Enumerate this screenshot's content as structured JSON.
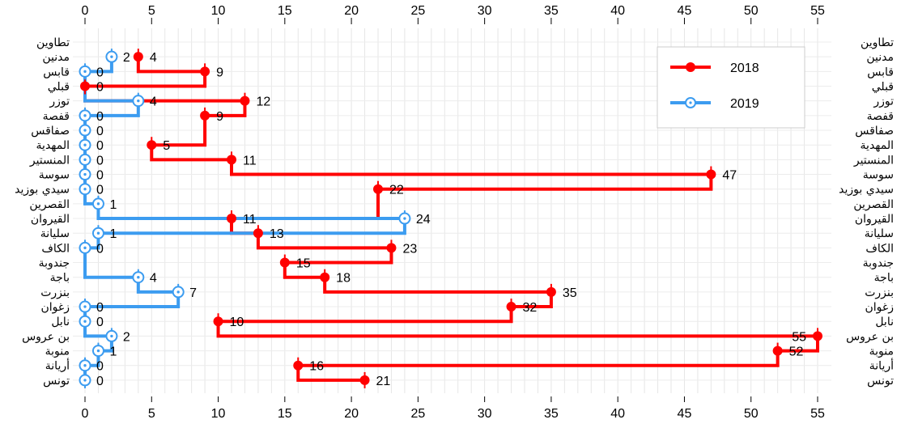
{
  "chart_data": {
    "type": "line",
    "orientation": "horizontal-step",
    "categories": [
      "تطاوين",
      "مدنين",
      "قابس",
      "قبلي",
      "توزر",
      "قفصة",
      "صفاقس",
      "المهدية",
      "المنستير",
      "سوسة",
      "سيدي بوزيد",
      "القصرين",
      "القيروان",
      "سليانة",
      "الكاف",
      "جندوبة",
      "باجة",
      "بنزرت",
      "زغوان",
      "نابل",
      "بن عروس",
      "منوبة",
      "أريانة",
      "تونس"
    ],
    "series": [
      {
        "name": "2018",
        "color": "#ff0000",
        "marker": "filled-circle",
        "values": [
          null,
          4,
          9,
          0,
          12,
          9,
          null,
          5,
          11,
          47,
          22,
          null,
          11,
          13,
          23,
          15,
          18,
          35,
          32,
          10,
          55,
          52,
          16,
          21
        ]
      },
      {
        "name": "2019",
        "color": "#3c9cf0",
        "marker": "ringed-dot",
        "values": [
          null,
          2,
          0,
          null,
          4,
          0,
          0,
          0,
          0,
          0,
          0,
          1,
          24,
          1,
          0,
          null,
          4,
          7,
          0,
          0,
          2,
          1,
          0,
          0
        ]
      }
    ],
    "x_ticks": [
      0,
      5,
      10,
      15,
      20,
      25,
      30,
      35,
      40,
      45,
      50,
      55
    ],
    "xlim": [
      0,
      55
    ],
    "grid": true,
    "legend_position": "top-right",
    "axis_ticks_top_and_bottom": true,
    "category_labels_left_and_right": true
  }
}
